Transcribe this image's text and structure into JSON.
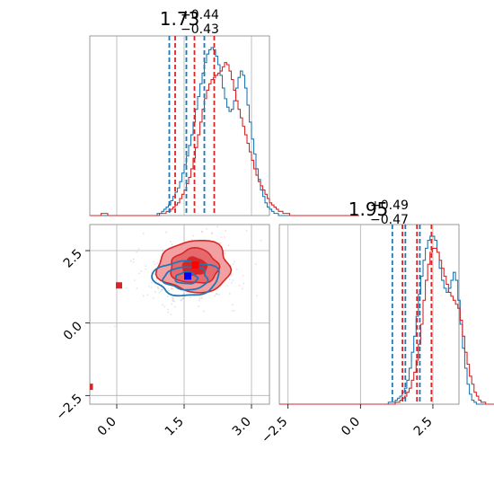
{
  "chart_data": [
    {
      "type": "histogram",
      "panel": "marginal-param-1",
      "title": {
        "median": "1.73",
        "upper": "+0.44",
        "lower": "−0.43"
      },
      "xlim": [
        -0.6,
        3.4
      ],
      "grid": true,
      "series": [
        {
          "color": "#1f77b4",
          "median": 1.55,
          "quantiles": [
            1.17,
            1.95
          ],
          "bin_start": -0.6,
          "bin_width": 0.05,
          "counts": [
            0,
            0,
            0,
            0,
            0,
            0,
            0,
            0,
            0,
            0,
            0,
            0,
            0,
            0,
            0,
            0,
            0,
            0,
            0,
            0,
            0,
            0,
            0,
            0,
            0,
            0,
            0,
            0,
            0,
            0,
            1,
            1,
            2,
            3,
            4,
            5,
            7,
            9,
            11,
            13,
            16,
            20,
            24,
            28,
            33,
            38,
            44,
            50,
            56,
            62,
            67,
            72,
            76,
            78,
            79,
            78,
            75,
            71,
            66,
            60,
            55,
            51,
            49,
            50,
            54,
            60,
            65,
            68,
            66,
            60,
            52,
            44,
            36,
            29,
            22,
            17,
            12,
            9,
            6,
            4,
            3,
            2,
            1,
            1,
            0,
            0,
            0,
            0,
            0,
            0,
            0,
            0,
            0,
            0,
            0,
            0,
            0,
            0,
            0,
            0,
            0,
            0,
            0,
            0,
            0,
            0,
            0,
            0,
            0,
            0,
            0,
            0,
            0,
            0,
            0,
            0,
            0,
            0
          ]
        },
        {
          "color": "#d62728",
          "median": 1.73,
          "quantiles": [
            1.3,
            2.17
          ],
          "bin_start": -0.6,
          "bin_width": 0.05,
          "counts": [
            0,
            0,
            0,
            0,
            0,
            1,
            1,
            1,
            0,
            0,
            0,
            0,
            0,
            0,
            0,
            0,
            0,
            0,
            0,
            0,
            0,
            0,
            0,
            0,
            0,
            0,
            0,
            0,
            0,
            0,
            0,
            1,
            1,
            1,
            2,
            2,
            3,
            4,
            5,
            6,
            8,
            10,
            12,
            15,
            18,
            22,
            27,
            32,
            38,
            44,
            50,
            55,
            59,
            62,
            64,
            65,
            66,
            67,
            68,
            70,
            72,
            71,
            68,
            64,
            59,
            54,
            50,
            46,
            42,
            38,
            34,
            30,
            26,
            22,
            19,
            16,
            14,
            12,
            10,
            8,
            6,
            5,
            4,
            3,
            2,
            2,
            1,
            1,
            1,
            0,
            0,
            0,
            0,
            0,
            0,
            0,
            0,
            0,
            0,
            0,
            0,
            0,
            0,
            0,
            0,
            0,
            0,
            0,
            0,
            0,
            0,
            0,
            0,
            0,
            0,
            0,
            0,
            0,
            0,
            0
          ]
        }
      ]
    },
    {
      "type": "histogram",
      "panel": "marginal-param-2",
      "title": {
        "median": "1.95",
        "upper": "+0.49",
        "lower": "−0.47"
      },
      "xlim": [
        -2.8,
        3.4
      ],
      "xticks": [
        "−2.5",
        "0.0",
        "2.5"
      ],
      "grid": true,
      "series": [
        {
          "color": "#1f77b4",
          "median": 1.55,
          "quantiles": [
            1.1,
            2.05
          ],
          "bin_start": -2.8,
          "bin_width": 0.08,
          "counts": [
            0,
            0,
            0,
            0,
            0,
            0,
            0,
            0,
            0,
            0,
            0,
            0,
            0,
            0,
            0,
            0,
            0,
            0,
            0,
            0,
            0,
            0,
            0,
            0,
            0,
            0,
            0,
            0,
            0,
            0,
            0,
            0,
            0,
            0,
            0,
            0,
            0,
            0,
            0,
            0,
            0,
            0,
            0,
            0,
            0,
            0,
            0,
            1,
            1,
            1,
            2,
            3,
            4,
            6,
            8,
            12,
            18,
            26,
            34,
            44,
            55,
            64,
            72,
            78,
            82,
            84,
            84,
            82,
            76,
            68,
            62,
            58,
            56,
            58,
            62,
            66,
            62,
            52,
            40,
            28,
            18,
            10,
            5,
            2,
            1,
            0,
            0,
            0,
            0,
            0,
            0,
            0,
            0,
            0,
            0,
            0,
            0,
            0,
            0,
            0,
            0,
            0,
            0,
            0,
            0,
            0,
            0,
            0,
            0,
            0,
            0,
            0,
            0,
            0,
            0,
            0,
            0,
            0
          ]
        },
        {
          "color": "#d62728",
          "median": 1.95,
          "quantiles": [
            1.45,
            2.45
          ],
          "bin_start": -2.8,
          "bin_width": 0.08,
          "counts": [
            0,
            0,
            0,
            0,
            0,
            0,
            0,
            0,
            0,
            0,
            0,
            0,
            0,
            0,
            0,
            0,
            0,
            0,
            0,
            0,
            0,
            0,
            0,
            0,
            0,
            0,
            0,
            0,
            0,
            0,
            0,
            0,
            0,
            0,
            0,
            0,
            0,
            0,
            0,
            0,
            0,
            0,
            0,
            0,
            0,
            0,
            0,
            0,
            0,
            0,
            1,
            1,
            2,
            3,
            4,
            6,
            8,
            12,
            16,
            22,
            30,
            40,
            52,
            62,
            70,
            76,
            78,
            78,
            76,
            72,
            68,
            64,
            60,
            56,
            54,
            52,
            50,
            48,
            42,
            34,
            26,
            20,
            14,
            10,
            6,
            4,
            2,
            1,
            1,
            0,
            0,
            0,
            0,
            0,
            0,
            0,
            0,
            0,
            0,
            0,
            0,
            0,
            0,
            0,
            0,
            0,
            0,
            0,
            0,
            0,
            0,
            0,
            0,
            0,
            0,
            0,
            0,
            0
          ]
        }
      ]
    },
    {
      "type": "contour",
      "panel": "joint",
      "xlim": [
        -0.6,
        3.4
      ],
      "ylim": [
        -2.8,
        3.4
      ],
      "xticks": [
        "0.0",
        "1.5",
        "3.0"
      ],
      "yticks": [
        "−2.5",
        "0.0",
        "2.5"
      ],
      "grid": true,
      "series": [
        {
          "color": "#d62728",
          "center": [
            1.73,
            1.95
          ],
          "sx": 0.43,
          "sy": 0.48,
          "levels": [
            1,
            2,
            3
          ],
          "fill": true,
          "outlier_points": [
            [
              0.05,
              1.3
            ],
            [
              -0.6,
              -2.2
            ]
          ],
          "marker": [
            1.75,
            2.0
          ]
        },
        {
          "color": "#1f77b4",
          "center": [
            1.55,
            1.55
          ],
          "sx": 0.42,
          "sy": 0.34,
          "levels": [
            1,
            2,
            3
          ],
          "fill": false,
          "marker": [
            1.58,
            1.62
          ]
        }
      ]
    }
  ]
}
